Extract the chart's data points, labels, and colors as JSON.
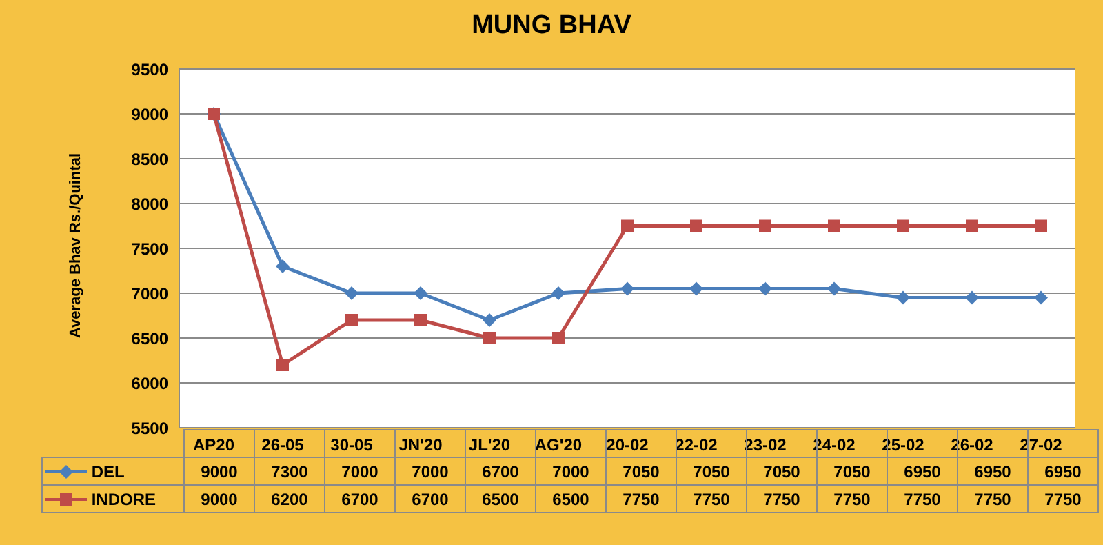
{
  "chart_data": {
    "type": "line",
    "title": "MUNG BHAV",
    "ylabel": "Average Bhav Rs./Quintal",
    "categories": [
      "AP20",
      "26-05",
      "30-05",
      "JN'20",
      "JL'20",
      "AG'20",
      "20-02",
      "22-02",
      "23-02",
      "24-02",
      "25-02",
      "26-02",
      "27-02"
    ],
    "series": [
      {
        "name": "DEL",
        "color": "#4a7ebb",
        "marker": "diamond",
        "values": [
          9000,
          7300,
          7000,
          7000,
          6700,
          7000,
          7050,
          7050,
          7050,
          7050,
          6950,
          6950,
          6950
        ]
      },
      {
        "name": "INDORE",
        "color": "#be4b48",
        "marker": "square",
        "values": [
          9000,
          6200,
          6700,
          6700,
          6500,
          6500,
          7750,
          7750,
          7750,
          7750,
          7750,
          7750,
          7750
        ]
      }
    ],
    "ylim": [
      5500,
      9500
    ],
    "yticks": [
      5500,
      6000,
      6500,
      7000,
      7500,
      8000,
      8500,
      9000,
      9500
    ],
    "grid": "y",
    "legend": "bottom",
    "data_labels": true
  }
}
